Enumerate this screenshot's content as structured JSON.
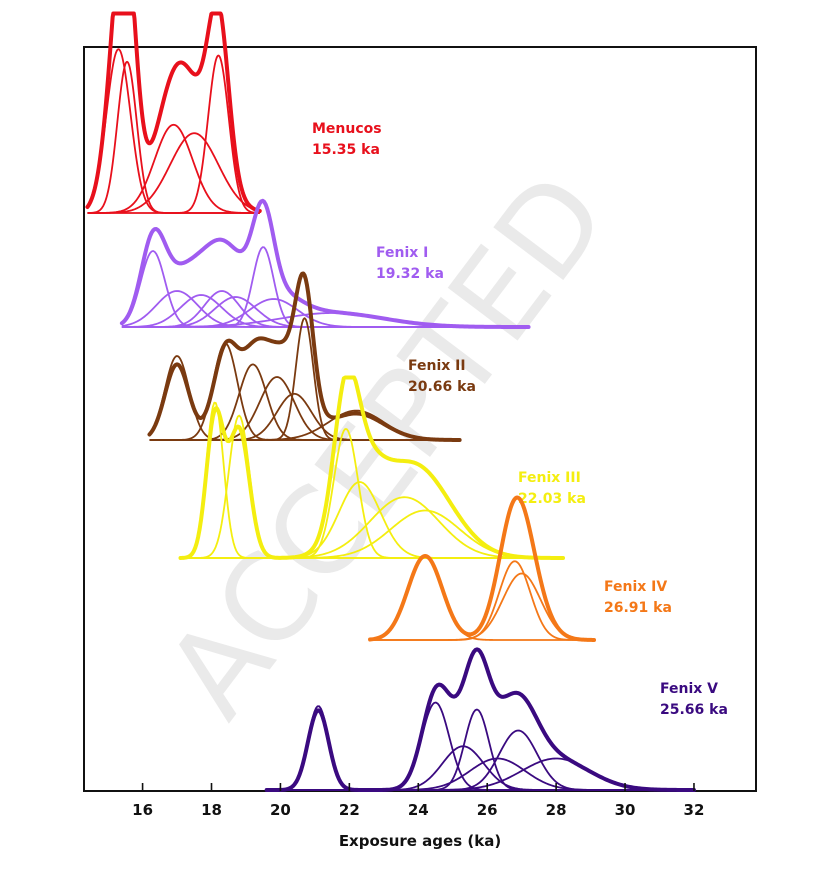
{
  "chart_data": {
    "type": "line",
    "title": "",
    "xlabel": "Exposure ages (ka)",
    "ylabel": "",
    "xlim": [
      14.3,
      33.8
    ],
    "xticks": [
      16,
      18,
      20,
      22,
      24,
      26,
      28,
      30,
      32
    ],
    "grid": false,
    "watermark": "ACCEPTED",
    "series": [
      {
        "name": "Menucos",
        "age_label": "15.35 ka",
        "color": "#e8101c",
        "range": [
          14.4,
          19.4
        ],
        "baseline": 0,
        "sum_scale": 1.0,
        "components": [
          {
            "mu": 15.3,
            "sigma": 0.35,
            "amp": 0.78
          },
          {
            "mu": 15.55,
            "sigma": 0.28,
            "amp": 0.72
          },
          {
            "mu": 16.9,
            "sigma": 0.55,
            "amp": 0.42
          },
          {
            "mu": 17.5,
            "sigma": 0.7,
            "amp": 0.38
          },
          {
            "mu": 18.2,
            "sigma": 0.3,
            "amp": 0.75
          }
        ]
      },
      {
        "name": "Fenix I",
        "age_label": "19.32 ka",
        "color": "#a05cf0",
        "range": [
          15.4,
          27.2
        ],
        "baseline": 1,
        "sum_scale": 1.0,
        "components": [
          {
            "mu": 16.3,
            "sigma": 0.35,
            "amp": 0.38
          },
          {
            "mu": 17.0,
            "sigma": 0.6,
            "amp": 0.18
          },
          {
            "mu": 17.7,
            "sigma": 0.6,
            "amp": 0.16
          },
          {
            "mu": 18.3,
            "sigma": 0.5,
            "amp": 0.18
          },
          {
            "mu": 18.7,
            "sigma": 0.6,
            "amp": 0.15
          },
          {
            "mu": 19.5,
            "sigma": 0.3,
            "amp": 0.4
          },
          {
            "mu": 19.8,
            "sigma": 0.7,
            "amp": 0.14
          },
          {
            "mu": 21.5,
            "sigma": 1.5,
            "amp": 0.07
          }
        ]
      },
      {
        "name": "Fenix II",
        "age_label": "20.66 ka",
        "color": "#7a3a10",
        "range": [
          16.2,
          25.2
        ],
        "baseline": 2,
        "sum_scale": 0.9,
        "components": [
          {
            "mu": 17.0,
            "sigma": 0.35,
            "amp": 0.4
          },
          {
            "mu": 18.4,
            "sigma": 0.35,
            "amp": 0.46
          },
          {
            "mu": 19.2,
            "sigma": 0.4,
            "amp": 0.36
          },
          {
            "mu": 19.9,
            "sigma": 0.5,
            "amp": 0.3
          },
          {
            "mu": 20.4,
            "sigma": 0.5,
            "amp": 0.22
          },
          {
            "mu": 20.7,
            "sigma": 0.25,
            "amp": 0.58
          },
          {
            "mu": 22.2,
            "sigma": 0.8,
            "amp": 0.14
          }
        ]
      },
      {
        "name": "Fenix III",
        "age_label": "22.03 ka",
        "color": "#f4ee10",
        "range": [
          17.1,
          28.2
        ],
        "baseline": 3,
        "sum_scale": 0.9,
        "components": [
          {
            "mu": 18.1,
            "sigma": 0.25,
            "amp": 0.82
          },
          {
            "mu": 18.8,
            "sigma": 0.3,
            "amp": 0.75
          },
          {
            "mu": 21.9,
            "sigma": 0.35,
            "amp": 0.68
          },
          {
            "mu": 22.3,
            "sigma": 0.6,
            "amp": 0.4
          },
          {
            "mu": 23.6,
            "sigma": 1.0,
            "amp": 0.32
          },
          {
            "mu": 24.2,
            "sigma": 1.0,
            "amp": 0.25
          }
        ]
      },
      {
        "name": "Fenix IV",
        "age_label": "26.91 ka",
        "color": "#f47818",
        "range": [
          22.6,
          29.1
        ],
        "baseline": 4,
        "sum_scale": 1.0,
        "components": [
          {
            "mu": 24.2,
            "sigma": 0.5,
            "amp": 0.48
          },
          {
            "mu": 26.8,
            "sigma": 0.45,
            "amp": 0.45
          },
          {
            "mu": 27.0,
            "sigma": 0.55,
            "amp": 0.38
          }
        ]
      },
      {
        "name": "Fenix V",
        "age_label": "25.66 ka",
        "color": "#3a0a80",
        "range": [
          19.6,
          32.0
        ],
        "baseline": 5,
        "sum_scale": 0.95,
        "components": [
          {
            "mu": 21.1,
            "sigma": 0.3,
            "amp": 0.48
          },
          {
            "mu": 24.5,
            "sigma": 0.4,
            "amp": 0.5
          },
          {
            "mu": 25.3,
            "sigma": 0.6,
            "amp": 0.25
          },
          {
            "mu": 25.7,
            "sigma": 0.35,
            "amp": 0.46
          },
          {
            "mu": 26.3,
            "sigma": 0.8,
            "amp": 0.18
          },
          {
            "mu": 26.9,
            "sigma": 0.55,
            "amp": 0.34
          },
          {
            "mu": 28.0,
            "sigma": 1.0,
            "amp": 0.18
          }
        ]
      }
    ]
  }
}
